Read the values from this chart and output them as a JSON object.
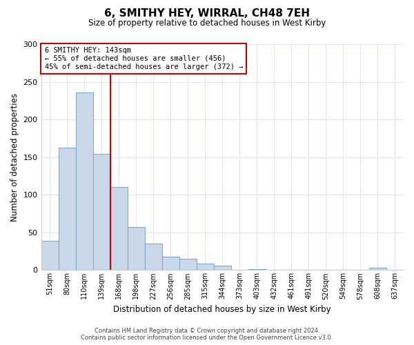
{
  "title": "6, SMITHY HEY, WIRRAL, CH48 7EH",
  "subtitle": "Size of property relative to detached houses in West Kirby",
  "xlabel": "Distribution of detached houses by size in West Kirby",
  "ylabel": "Number of detached properties",
  "bar_labels": [
    "51sqm",
    "80sqm",
    "110sqm",
    "139sqm",
    "168sqm",
    "198sqm",
    "227sqm",
    "256sqm",
    "285sqm",
    "315sqm",
    "344sqm",
    "373sqm",
    "403sqm",
    "432sqm",
    "461sqm",
    "491sqm",
    "520sqm",
    "549sqm",
    "578sqm",
    "608sqm",
    "637sqm"
  ],
  "bar_values": [
    39,
    163,
    236,
    154,
    110,
    57,
    35,
    18,
    15,
    9,
    6,
    0,
    1,
    0,
    0,
    0,
    0,
    0,
    0,
    3,
    0
  ],
  "bar_color": "#c9d9ea",
  "bar_edge_color": "#7faacc",
  "vline_index": 3,
  "vline_color": "#cc0000",
  "annotation_title": "6 SMITHY HEY: 143sqm",
  "annotation_line1": "← 55% of detached houses are smaller (456)",
  "annotation_line2": "45% of semi-detached houses are larger (372) →",
  "annotation_box_color": "#ffffff",
  "annotation_box_edge": "#cc0000",
  "ylim": [
    0,
    300
  ],
  "yticks": [
    0,
    50,
    100,
    150,
    200,
    250,
    300
  ],
  "footer1": "Contains HM Land Registry data © Crown copyright and database right 2024.",
  "footer2": "Contains public sector information licensed under the Open Government Licence v3.0.",
  "bg_color": "#ffffff",
  "grid_color": "#dde6f0"
}
